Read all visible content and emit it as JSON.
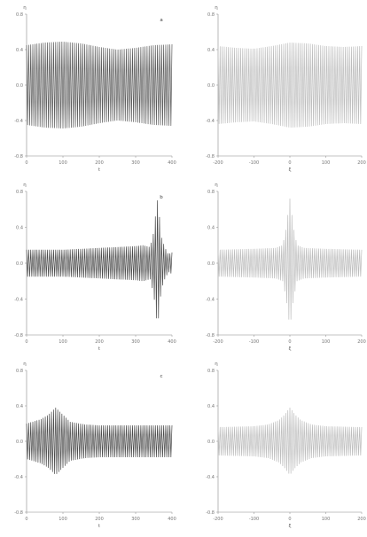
{
  "chart_data": [
    {
      "type": "line",
      "panel_label": "a",
      "xlabel": "t",
      "ylabel": "η",
      "xlim": [
        0,
        400
      ],
      "ylim": [
        -0.8,
        0.8
      ],
      "xticks": [
        "0",
        "100",
        "200",
        "300",
        "400"
      ],
      "yticks": [
        "-0.8",
        "-0.4",
        "0.0",
        "0.4",
        "0.8"
      ],
      "color": "#5a5a5a",
      "series": [
        {
          "x": [
            0,
            50,
            100,
            150,
            200,
            250,
            300,
            350,
            400
          ],
          "y": [
            0.45,
            0.48,
            0.49,
            0.47,
            0.43,
            0.4,
            0.42,
            0.45,
            0.46
          ]
        }
      ]
    },
    {
      "type": "line",
      "panel_label": "",
      "xlabel": "ξ",
      "ylabel": "η",
      "xlim": [
        -200,
        200
      ],
      "ylim": [
        -0.8,
        0.8
      ],
      "xticks": [
        "-200",
        "-100",
        "0",
        "100",
        "200"
      ],
      "yticks": [
        "-0.8",
        "-0.4",
        "0.0",
        "0.4",
        "0.8"
      ],
      "color": "#bdbdbd",
      "series": [
        {
          "x": [
            -200,
            -150,
            -100,
            -50,
            0,
            50,
            100,
            150,
            200
          ],
          "y": [
            0.44,
            0.42,
            0.41,
            0.44,
            0.48,
            0.47,
            0.44,
            0.43,
            0.44
          ]
        }
      ]
    },
    {
      "type": "line",
      "panel_label": "b",
      "xlabel": "t",
      "ylabel": "η",
      "xlim": [
        0,
        400
      ],
      "ylim": [
        -0.8,
        0.8
      ],
      "xticks": [
        "0",
        "100",
        "200",
        "300",
        "400"
      ],
      "yticks": [
        "-0.8",
        "-0.4",
        "0.0",
        "0.4",
        "0.8"
      ],
      "color": "#4a4a4a",
      "series": [
        {
          "x": [
            0,
            100,
            200,
            300,
            320,
            340,
            350,
            355,
            360,
            365,
            370,
            380,
            390,
            400
          ],
          "y": [
            0.15,
            0.15,
            0.17,
            0.19,
            0.2,
            0.18,
            0.35,
            0.55,
            0.7,
            0.55,
            0.3,
            0.18,
            0.1,
            0.12
          ]
        }
      ]
    },
    {
      "type": "line",
      "panel_label": "",
      "xlabel": "ξ",
      "ylabel": "η",
      "xlim": [
        -200,
        200
      ],
      "ylim": [
        -0.8,
        0.8
      ],
      "xticks": [
        "-200",
        "-100",
        "0",
        "100",
        "200"
      ],
      "yticks": [
        "-0.8",
        "-0.4",
        "0.0",
        "0.4",
        "0.8"
      ],
      "color": "#bdbdbd",
      "series": [
        {
          "x": [
            -200,
            -100,
            -40,
            -20,
            -10,
            0,
            10,
            20,
            40,
            100,
            200
          ],
          "y": [
            0.15,
            0.16,
            0.17,
            0.2,
            0.4,
            0.72,
            0.4,
            0.2,
            0.17,
            0.16,
            0.15
          ]
        }
      ]
    },
    {
      "type": "line",
      "panel_label": "c",
      "xlabel": "t",
      "ylabel": "η",
      "xlim": [
        0,
        400
      ],
      "ylim": [
        -0.8,
        0.8
      ],
      "xticks": [
        "0",
        "100",
        "200",
        "300",
        "400"
      ],
      "yticks": [
        "-0.8",
        "-0.4",
        "0.0",
        "0.4",
        "0.8"
      ],
      "color": "#4a4a4a",
      "series": [
        {
          "x": [
            0,
            40,
            60,
            80,
            100,
            120,
            160,
            200,
            300,
            400
          ],
          "y": [
            0.2,
            0.25,
            0.3,
            0.38,
            0.3,
            0.22,
            0.19,
            0.18,
            0.18,
            0.18
          ]
        }
      ]
    },
    {
      "type": "line",
      "panel_label": "",
      "xlabel": "ξ",
      "ylabel": "η",
      "xlim": [
        -200,
        200
      ],
      "ylim": [
        -0.8,
        0.8
      ],
      "xticks": [
        "-200",
        "-100",
        "0",
        "100",
        "200"
      ],
      "yticks": [
        "-0.8",
        "-0.4",
        "0.0",
        "0.4",
        "0.8"
      ],
      "color": "#bdbdbd",
      "series": [
        {
          "x": [
            -200,
            -100,
            -60,
            -30,
            -15,
            0,
            15,
            30,
            60,
            100,
            200
          ],
          "y": [
            0.16,
            0.17,
            0.19,
            0.24,
            0.3,
            0.38,
            0.3,
            0.24,
            0.19,
            0.17,
            0.16
          ]
        }
      ]
    }
  ]
}
